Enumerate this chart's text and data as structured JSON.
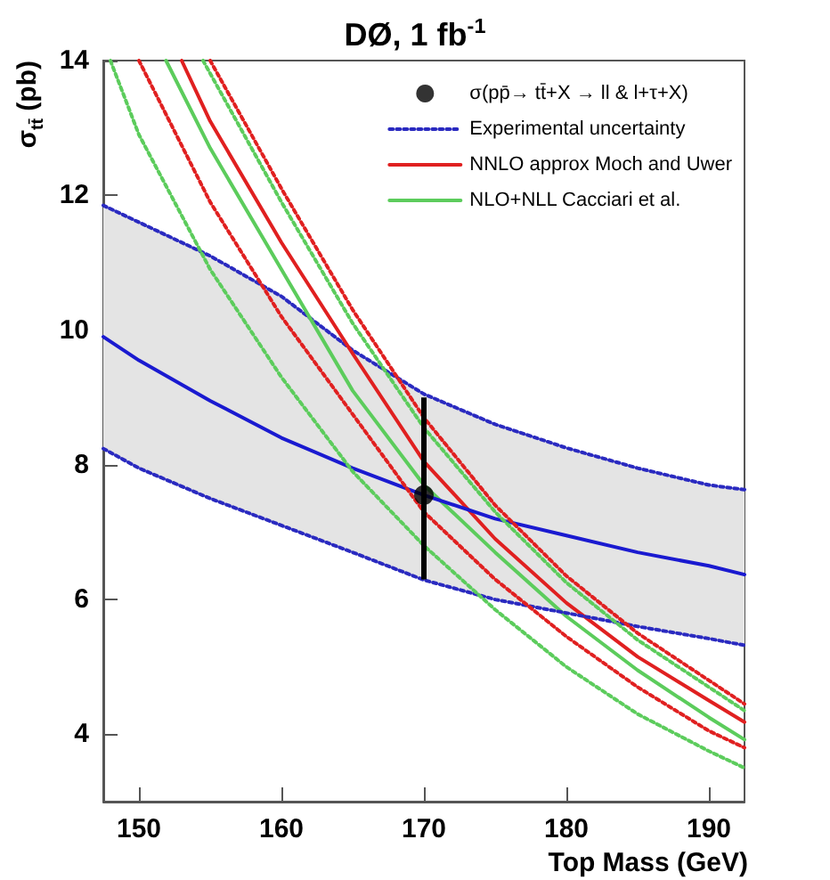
{
  "chart_data": {
    "type": "line",
    "title": "DØ, 1 fb$^{-1}$",
    "xlabel": "Top Mass (GeV)",
    "ylabel": "σ$_{tt̄}$ (pb)",
    "xlim": [
      147.5,
      192.5
    ],
    "xticks": [
      150,
      160,
      170,
      180,
      190
    ],
    "ylim": [
      3,
      14
    ],
    "yticks": [
      4,
      6,
      8,
      10,
      12,
      14
    ],
    "legend": "top right",
    "marker": "none",
    "line_style": "solid",
    "series": [
      {
        "type": "scatter",
        "name": "σ(pp̄→ tt̄+X → ll & l+τ+X)",
        "color": "#000000",
        "marker": "circle",
        "x": [
          170
        ],
        "values": [
          7.55
        ],
        "errors": [
          [
            6.3,
            9.0
          ]
        ]
      },
      {
        "name": "Experimental uncertainty",
        "color": "#2a2ac0",
        "line_style": "dotted",
        "x": [
          147.5,
          150,
          155,
          160,
          165,
          170,
          175,
          180,
          185,
          190,
          192.5
        ],
        "values": [
          11.85,
          11.6,
          11.1,
          10.5,
          9.7,
          9.05,
          8.6,
          8.25,
          7.95,
          7.7,
          7.63
        ]
      },
      {
        "name": "NNLO approx Moch and Uwer",
        "color": "#e02020",
        "x": [
          153,
          155,
          160,
          165,
          170,
          175,
          180,
          185,
          190,
          192.5
        ],
        "values": [
          14,
          13.1,
          11.3,
          9.65,
          8.05,
          6.9,
          5.95,
          5.15,
          4.5,
          4.18
        ]
      },
      {
        "name": "NLO+NLL Cacciari et al.",
        "color": "#5ccc5c",
        "x": [
          151.9,
          155,
          160,
          165,
          170,
          175,
          180,
          185,
          190,
          192.5
        ],
        "values": [
          14,
          12.7,
          10.9,
          9.1,
          7.7,
          6.7,
          5.75,
          4.95,
          4.25,
          3.92
        ]
      },
      {
        "color": "#1a1ad0",
        "x": [
          147.5,
          150,
          155,
          160,
          165,
          170,
          175,
          180,
          185,
          190,
          192.5
        ],
        "values": [
          9.9,
          9.55,
          8.95,
          8.4,
          7.95,
          7.55,
          7.2,
          6.95,
          6.7,
          6.5,
          6.37
        ],
        "lower": [
          8.24,
          7.95,
          7.5,
          7.1,
          6.7,
          6.29,
          6.0,
          5.8,
          5.6,
          5.42,
          5.32
        ],
        "upper": [
          11.85,
          11.6,
          11.1,
          10.5,
          9.7,
          9.05,
          8.6,
          8.25,
          7.95,
          7.7,
          7.63
        ]
      },
      {
        "color": "#2a2ac0",
        "line_style": "dotted",
        "x": [
          147.5,
          150,
          155,
          160,
          165,
          170,
          175,
          180,
          185,
          190,
          192.5
        ],
        "values": [
          8.24,
          7.95,
          7.5,
          7.1,
          6.7,
          6.29,
          6.0,
          5.8,
          5.6,
          5.42,
          5.32
        ]
      },
      {
        "color": "#e02020",
        "line_style": "dotted",
        "x": [
          155,
          160,
          165,
          170,
          175,
          180,
          185,
          190,
          192.5
        ],
        "values": [
          14,
          12.1,
          10.3,
          8.7,
          7.4,
          6.35,
          5.5,
          4.8,
          4.45
        ]
      },
      {
        "color": "#e02020",
        "line_style": "dotted",
        "x": [
          150,
          155,
          160,
          165,
          170,
          175,
          180,
          185,
          190,
          192.5
        ],
        "values": [
          14,
          11.9,
          10.2,
          8.75,
          7.3,
          6.3,
          5.45,
          4.7,
          4.05,
          3.8
        ]
      },
      {
        "color": "#5ccc5c",
        "line_style": "dotted",
        "x": [
          154.5,
          160,
          165,
          170,
          175,
          180,
          185,
          190,
          192.5
        ],
        "values": [
          14,
          11.9,
          10.1,
          8.55,
          7.3,
          6.25,
          5.4,
          4.7,
          4.35
        ]
      },
      {
        "color": "#5ccc5c",
        "line_style": "dotted",
        "x": [
          148,
          150,
          155,
          160,
          165,
          170,
          175,
          180,
          185,
          190,
          192.5
        ],
        "values": [
          14,
          12.9,
          10.9,
          9.3,
          7.9,
          6.8,
          5.85,
          5.0,
          4.3,
          3.75,
          3.5
        ]
      }
    ]
  }
}
